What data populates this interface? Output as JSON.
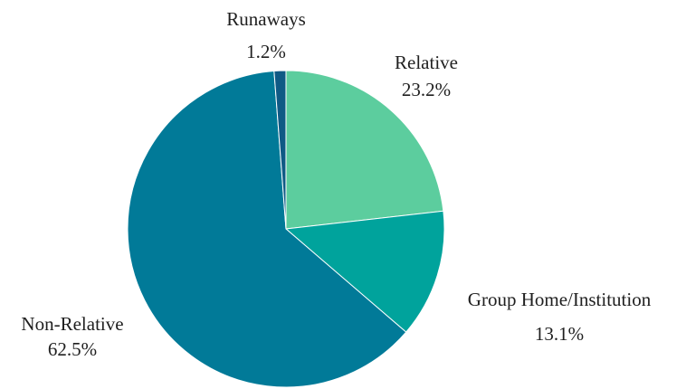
{
  "chart_data": {
    "type": "pie",
    "slices": [
      {
        "label": "Relative",
        "value": 23.2,
        "value_label": "23.2%",
        "color": "#5ccd9e"
      },
      {
        "label": "Group Home/Institution",
        "value": 13.1,
        "value_label": "13.1%",
        "color": "#00a39c"
      },
      {
        "label": "Non-Relative",
        "value": 62.5,
        "value_label": "62.5%",
        "color": "#017a98"
      },
      {
        "label": "Runaways",
        "value": 1.2,
        "value_label": "1.2%",
        "color": "#0f5a85"
      }
    ],
    "start_angle": "top (12 o'clock)",
    "direction": "clockwise",
    "legend": "none"
  }
}
